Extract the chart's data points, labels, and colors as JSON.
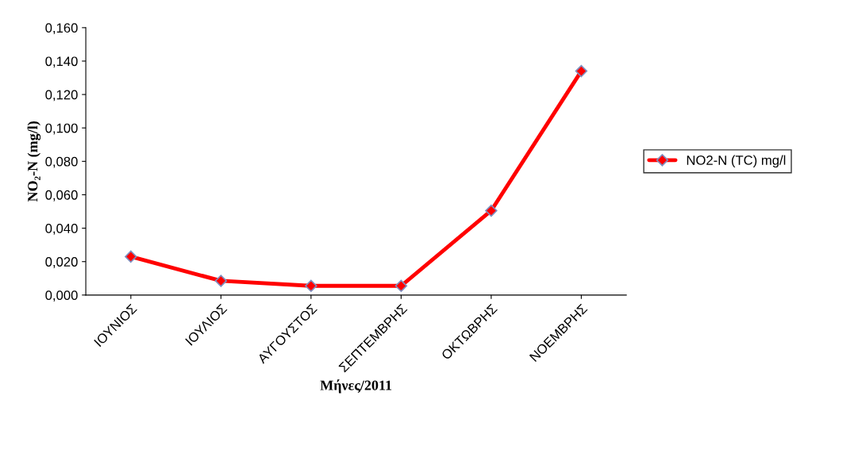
{
  "chart_data": {
    "type": "line",
    "xlabel": "Μήνες/2011",
    "ylabel": "NO₂-N (mg/l)",
    "categories": [
      "ΙΟΥΝΙΟΣ",
      "ΙΟΥΛΙΟΣ",
      "ΑΥΓΟΥΣΤΟΣ",
      "ΣΕΠΤΕΜΒΡΗΣ",
      "ΟΚΤΩΒΡΗΣ",
      "ΝΟΕΜΒΡΗΣ"
    ],
    "series": [
      {
        "name": "NO2-N (TC) mg/l",
        "color": "#ff0000",
        "values": [
          0.023,
          0.0085,
          0.0055,
          0.0055,
          0.0505,
          0.134
        ]
      }
    ],
    "ylim": [
      0,
      0.16
    ],
    "yticks": [
      {
        "value": 0,
        "label": "0,000"
      },
      {
        "value": 0.02,
        "label": "0,020"
      },
      {
        "value": 0.04,
        "label": "0,040"
      },
      {
        "value": 0.06,
        "label": "0,060"
      },
      {
        "value": 0.08,
        "label": "0,080"
      },
      {
        "value": 0.1,
        "label": "0,100"
      },
      {
        "value": 0.12,
        "label": "0,120"
      },
      {
        "value": 0.14,
        "label": "0,140"
      },
      {
        "value": 0.16,
        "label": "0,160"
      }
    ],
    "legend": "right",
    "marker": "diamond",
    "line_style": "solid",
    "grid": false
  }
}
